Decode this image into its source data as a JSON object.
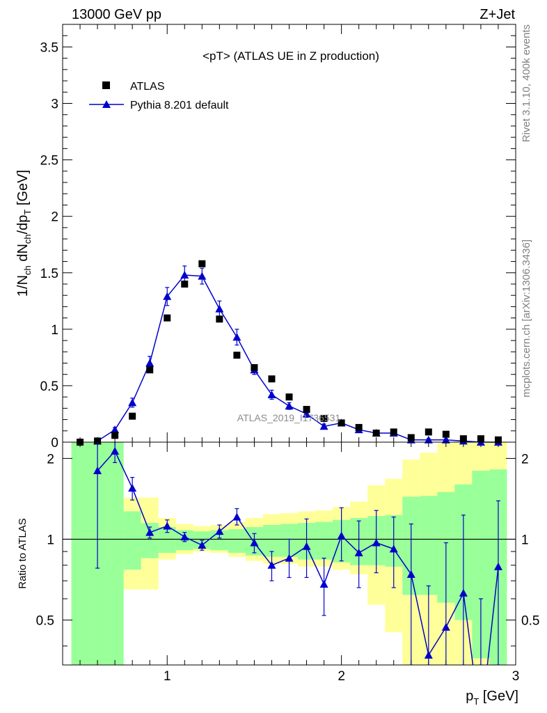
{
  "header": {
    "left": "13000 GeV pp",
    "right": "Z+Jet"
  },
  "sidebar": {
    "rivet": "Rivet 3.1.10,  400k events",
    "mcplots": "mcplots.cern.ch [arXiv:1306.3436]"
  },
  "colors": {
    "atlas": "#000000",
    "mc": "#0000cc",
    "band_green": "#99ff99",
    "band_yellow": "#ffff99"
  },
  "chart_data": [
    {
      "type": "scatter",
      "title": "<pT> (ATLAS UE in Z production)",
      "watermark": "ATLAS_2019_I1736531",
      "xlabel": "p_T [GeV]",
      "ylabel": "1/N_ch dN_ch/dp_T [GeV]",
      "xlim": [
        0.4,
        3.0
      ],
      "ylim": [
        0,
        3.7
      ],
      "xticks": [
        "1",
        "2",
        "3"
      ],
      "yticks": [
        "0",
        "0.5",
        "1",
        "1.5",
        "2",
        "2.5",
        "3",
        "3.5"
      ],
      "legend_position": "top-left",
      "series": [
        {
          "name": "ATLAS",
          "marker": "square",
          "x": [
            0.5,
            0.6,
            0.7,
            0.8,
            0.9,
            1.0,
            1.1,
            1.2,
            1.3,
            1.4,
            1.5,
            1.6,
            1.7,
            1.8,
            1.9,
            2.0,
            2.1,
            2.2,
            2.3,
            2.4,
            2.5,
            2.6,
            2.7,
            2.8,
            2.9
          ],
          "y": [
            0.0,
            0.01,
            0.06,
            0.23,
            0.64,
            1.1,
            1.4,
            1.58,
            1.09,
            0.77,
            0.66,
            0.56,
            0.4,
            0.29,
            0.21,
            0.17,
            0.13,
            0.08,
            0.09,
            0.04,
            0.09,
            0.07,
            0.03,
            0.03,
            0.02
          ]
        },
        {
          "name": "Pythia 8.201 default",
          "marker": "triangle",
          "x": [
            0.6,
            0.7,
            0.8,
            0.9,
            1.0,
            1.1,
            1.2,
            1.3,
            1.4,
            1.5,
            1.6,
            1.7,
            1.8,
            1.9,
            2.0,
            2.1,
            2.2,
            2.3,
            2.4,
            2.5,
            2.6,
            2.7,
            2.8,
            2.9
          ],
          "y": [
            0.01,
            0.11,
            0.35,
            0.7,
            1.29,
            1.48,
            1.47,
            1.18,
            0.93,
            0.64,
            0.42,
            0.32,
            0.25,
            0.14,
            0.17,
            0.11,
            0.08,
            0.08,
            0.02,
            0.02,
            0.02,
            0.01,
            0.0,
            0.0
          ],
          "yerr": [
            0.0,
            0.02,
            0.04,
            0.06,
            0.08,
            0.08,
            0.07,
            0.07,
            0.07,
            0.04,
            0.04,
            0.03,
            0.03,
            0.02,
            0.02,
            0.01,
            0.01,
            0.01,
            0.01,
            0.01,
            0.01,
            0.01,
            0.0,
            0.0
          ]
        }
      ]
    },
    {
      "type": "line",
      "xlabel": "p_T [GeV]",
      "ylabel": "Ratio to ATLAS",
      "xlim": [
        0.4,
        3.0
      ],
      "ylim": [
        0.34,
        2.3
      ],
      "xticks": [
        "1",
        "2",
        "3"
      ],
      "yticks": [
        "0.5",
        "1",
        "2"
      ],
      "reference": 1,
      "bands": {
        "edges": [
          0.45,
          0.55,
          0.65,
          0.75,
          0.85,
          0.95,
          1.05,
          1.15,
          1.25,
          1.35,
          1.45,
          1.55,
          1.65,
          1.75,
          1.85,
          1.95,
          2.05,
          2.15,
          2.25,
          2.35,
          2.45,
          2.55,
          2.65,
          2.75,
          2.85,
          2.95
        ],
        "green_low": [
          0.2,
          0.2,
          0.2,
          0.77,
          0.85,
          0.89,
          0.91,
          0.92,
          0.91,
          0.89,
          0.87,
          0.86,
          0.86,
          0.84,
          0.84,
          0.82,
          0.8,
          0.8,
          0.79,
          0.62,
          0.62,
          0.58,
          0.5,
          0.36,
          0.3
        ],
        "green_high": [
          2.5,
          2.5,
          2.5,
          1.27,
          1.15,
          1.11,
          1.08,
          1.07,
          1.08,
          1.09,
          1.11,
          1.13,
          1.14,
          1.15,
          1.16,
          1.18,
          1.2,
          1.22,
          1.23,
          1.44,
          1.45,
          1.5,
          1.6,
          1.8,
          1.82
        ],
        "yellow_low": [
          0.2,
          0.2,
          0.2,
          0.65,
          0.65,
          0.84,
          0.88,
          0.9,
          0.89,
          0.86,
          0.83,
          0.81,
          0.81,
          0.79,
          0.79,
          0.77,
          0.74,
          0.57,
          0.45,
          0.3,
          0.3,
          0.3,
          0.3,
          0.2,
          0.2
        ],
        "yellow_high": [
          2.5,
          2.5,
          2.5,
          1.43,
          1.43,
          1.2,
          1.14,
          1.12,
          1.13,
          1.16,
          1.2,
          1.24,
          1.25,
          1.27,
          1.28,
          1.32,
          1.38,
          1.59,
          1.68,
          1.98,
          2.1,
          2.28,
          2.5,
          2.5,
          2.5
        ]
      },
      "series": [
        {
          "name": "Pythia 8.201 default",
          "x": [
            0.6,
            0.7,
            0.8,
            0.9,
            1.0,
            1.1,
            1.2,
            1.3,
            1.4,
            1.5,
            1.6,
            1.7,
            1.8,
            1.9,
            2.0,
            2.1,
            2.2,
            2.3,
            2.4,
            2.5,
            2.6,
            2.7,
            2.8,
            2.9
          ],
          "y": [
            1.8,
            2.13,
            1.55,
            1.06,
            1.12,
            1.02,
            0.95,
            1.07,
            1.21,
            0.97,
            0.8,
            0.85,
            0.94,
            0.68,
            1.03,
            0.89,
            0.97,
            0.92,
            0.74,
            0.37,
            0.47,
            0.63,
            0.2,
            0.79
          ],
          "yerr_low": [
            1.02,
            0.2,
            0.15,
            0.05,
            0.06,
            0.04,
            0.04,
            0.06,
            0.08,
            0.08,
            0.1,
            0.13,
            0.22,
            0.16,
            0.2,
            0.23,
            0.22,
            0.26,
            0.4,
            0.1,
            0.2,
            0.35,
            0.1,
            0.5
          ],
          "yerr_high": [
            1.0,
            0.2,
            0.15,
            0.05,
            0.06,
            0.04,
            0.04,
            0.06,
            0.09,
            0.08,
            0.1,
            0.15,
            0.25,
            0.17,
            0.28,
            0.28,
            0.31,
            0.29,
            0.4,
            0.3,
            0.5,
            0.6,
            0.4,
            0.6
          ]
        }
      ]
    }
  ]
}
